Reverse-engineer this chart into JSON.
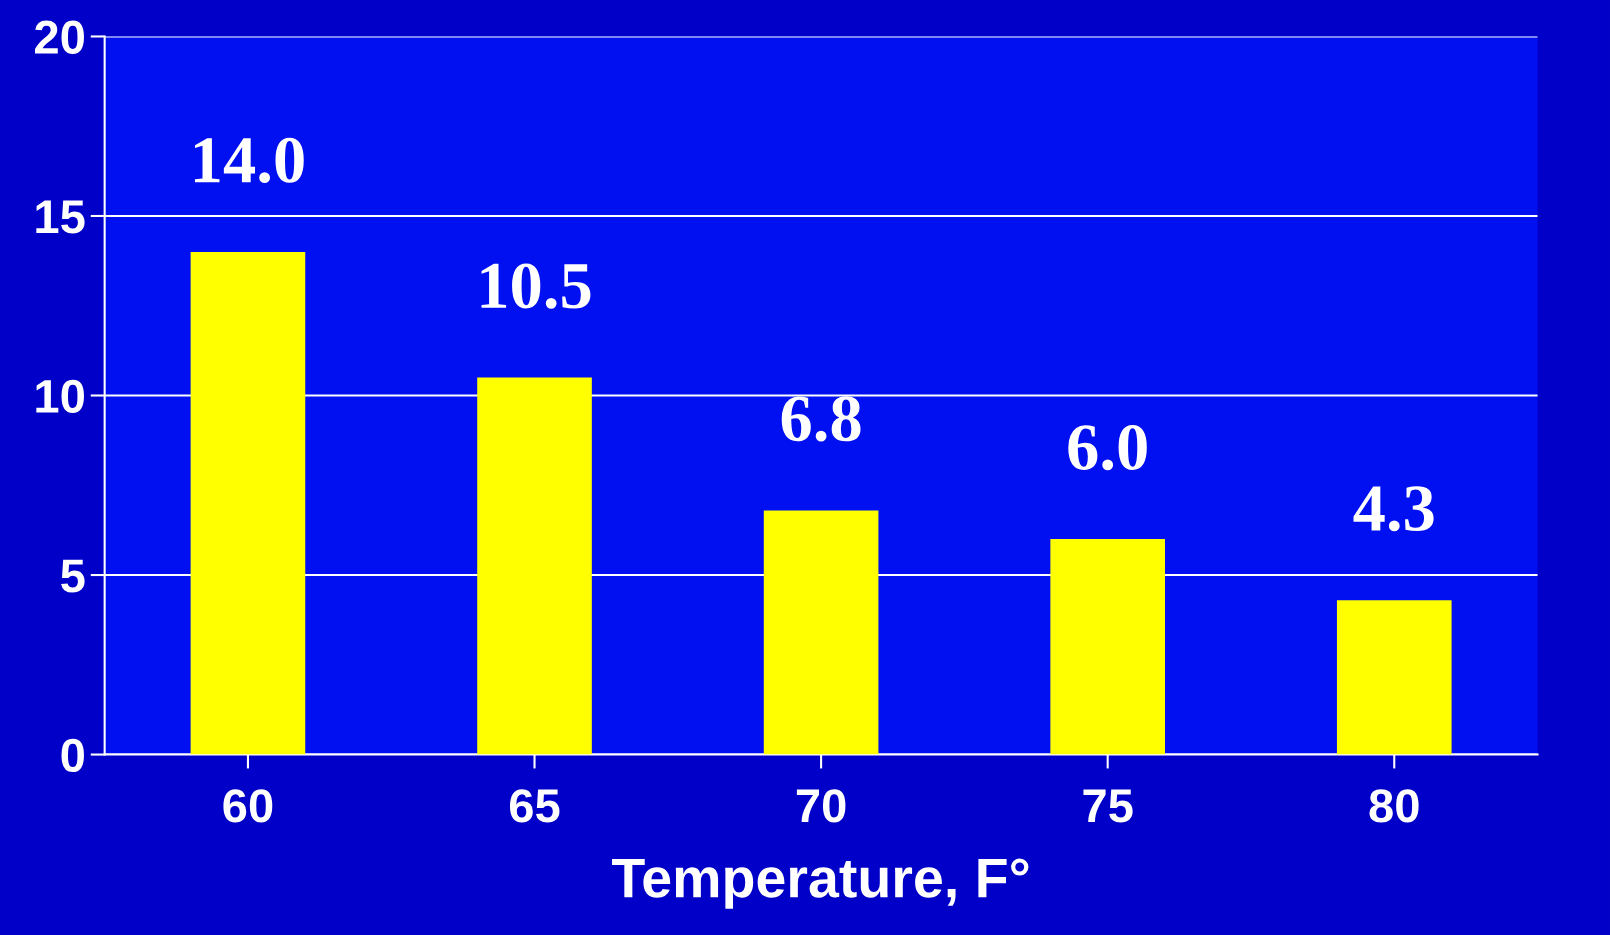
{
  "chart_data": {
    "type": "bar",
    "xlabel": "Temperature, F°",
    "categories": [
      "60",
      "65",
      "70",
      "75",
      "80"
    ],
    "values": [
      14.0,
      10.5,
      6.8,
      6.0,
      4.3
    ],
    "value_labels": [
      "14.0",
      "10.5",
      "6.8",
      "6.0",
      "4.3"
    ],
    "color": "#ffff00",
    "ylim": [
      0,
      20
    ],
    "yticks": [
      0,
      5,
      10,
      15,
      20
    ],
    "grid": "y"
  }
}
